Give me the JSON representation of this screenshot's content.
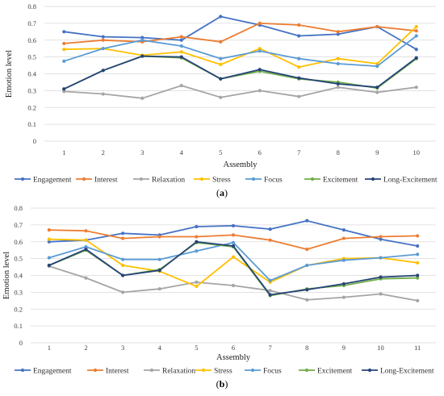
{
  "colors": {
    "Engagement": "#4472c4",
    "Interest": "#ed7d31",
    "Relaxation": "#a5a5a5",
    "Stress": "#ffc000",
    "Focus": "#5b9bd5",
    "Excitement": "#70ad47",
    "Long-Excitement": "#264478",
    "grid": "#d9d9d9"
  },
  "chart_data": [
    {
      "type": "line",
      "caption_open": "(",
      "caption_letter": "a",
      "caption_close": ")",
      "xlabel": "Assembly",
      "ylabel": "Emotion level",
      "ylim": [
        0,
        0.8
      ],
      "yticks": [
        "0",
        "0.1",
        "0.2",
        "0.3",
        "0.4",
        "0.5",
        "0.6",
        "0.7",
        "0.8"
      ],
      "grid": true,
      "legend": "bottom",
      "x": [
        1,
        2,
        3,
        4,
        5,
        6,
        7,
        8,
        9,
        10
      ],
      "series": [
        {
          "name": "Engagement",
          "values": [
            0.65,
            0.62,
            0.615,
            0.6,
            0.74,
            0.69,
            0.625,
            0.635,
            0.68,
            0.545
          ]
        },
        {
          "name": "Interest",
          "values": [
            0.58,
            0.6,
            0.59,
            0.62,
            0.59,
            0.7,
            0.69,
            0.65,
            0.68,
            0.655
          ]
        },
        {
          "name": "Relaxation",
          "values": [
            0.295,
            0.28,
            0.255,
            0.33,
            0.26,
            0.3,
            0.265,
            0.32,
            0.29,
            0.32
          ]
        },
        {
          "name": "Stress",
          "values": [
            0.545,
            0.55,
            0.51,
            0.53,
            0.455,
            0.55,
            0.44,
            0.49,
            0.46,
            0.68
          ]
        },
        {
          "name": "Focus",
          "values": [
            0.475,
            0.55,
            0.6,
            0.565,
            0.49,
            0.535,
            0.49,
            0.46,
            0.445,
            0.625
          ]
        },
        {
          "name": "Excitement",
          "values": [
            0.31,
            0.42,
            0.505,
            0.495,
            0.37,
            0.415,
            0.37,
            0.35,
            0.315,
            0.49
          ]
        },
        {
          "name": "Long-Excitement",
          "values": [
            0.31,
            0.42,
            0.505,
            0.5,
            0.37,
            0.425,
            0.375,
            0.34,
            0.32,
            0.495
          ]
        }
      ]
    },
    {
      "type": "line",
      "caption_open": "(",
      "caption_letter": "b",
      "caption_close": ")",
      "xlabel": "Assembly",
      "ylabel": "Emotion level",
      "ylim": [
        0,
        0.8
      ],
      "yticks": [
        "0",
        "0.1",
        "0.2",
        "0.3",
        "0.4",
        "0.5",
        "0.6",
        "0.7",
        "0.8"
      ],
      "grid": true,
      "legend": "bottom",
      "x": [
        1,
        2,
        3,
        4,
        5,
        6,
        7,
        8,
        9,
        10,
        11
      ],
      "series": [
        {
          "name": "Engagement",
          "values": [
            0.6,
            0.61,
            0.65,
            0.64,
            0.69,
            0.695,
            0.675,
            0.725,
            0.67,
            0.615,
            0.575
          ]
        },
        {
          "name": "Interest",
          "values": [
            0.67,
            0.665,
            0.62,
            0.63,
            0.63,
            0.64,
            0.61,
            0.555,
            0.62,
            0.63,
            0.635
          ]
        },
        {
          "name": "Relaxation",
          "values": [
            0.455,
            0.385,
            0.3,
            0.32,
            0.36,
            0.34,
            0.31,
            0.255,
            0.27,
            0.29,
            0.25
          ]
        },
        {
          "name": "Stress",
          "values": [
            0.615,
            0.61,
            0.46,
            0.425,
            0.335,
            0.51,
            0.36,
            0.46,
            0.5,
            0.505,
            0.475
          ]
        },
        {
          "name": "Focus",
          "values": [
            0.505,
            0.57,
            0.495,
            0.495,
            0.545,
            0.595,
            0.37,
            0.46,
            0.49,
            0.505,
            0.525
          ]
        },
        {
          "name": "Excitement",
          "values": [
            0.46,
            0.55,
            0.4,
            0.435,
            0.595,
            0.57,
            0.28,
            0.32,
            0.34,
            0.38,
            0.385
          ]
        },
        {
          "name": "Long-Excitement",
          "values": [
            0.46,
            0.555,
            0.4,
            0.43,
            0.6,
            0.575,
            0.285,
            0.315,
            0.35,
            0.39,
            0.4
          ]
        }
      ]
    }
  ]
}
